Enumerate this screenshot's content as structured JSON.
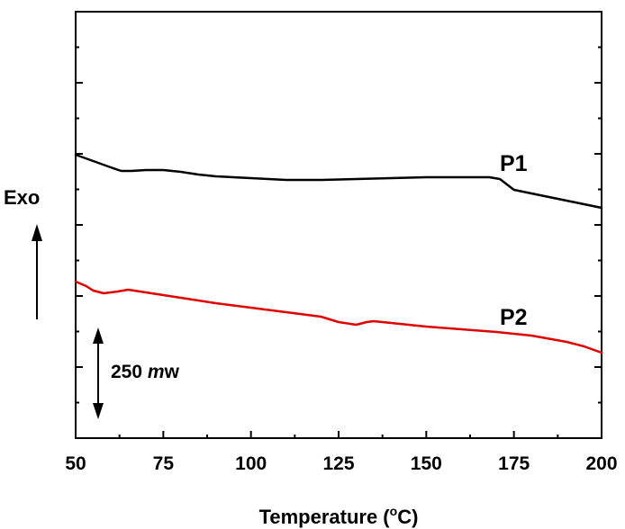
{
  "chart_data": {
    "type": "line",
    "title": "",
    "xlabel": "Temperature (",
    "xlabel_sup": "o",
    "xlabel_unit": "C)",
    "ylabel": "Exo",
    "xlim": [
      50,
      200
    ],
    "x_ticks": [
      "50",
      "75",
      "100",
      "125",
      "150",
      "175",
      "200"
    ],
    "scale_bar": {
      "value": "250 ",
      "unit_italic": "m",
      "unit_rest": "w"
    },
    "series": [
      {
        "name": "P1",
        "color": "#000000",
        "points": [
          [
            50,
            172
          ],
          [
            55,
            179
          ],
          [
            60,
            186
          ],
          [
            63,
            190
          ],
          [
            66,
            190
          ],
          [
            70,
            189
          ],
          [
            75,
            189
          ],
          [
            80,
            191
          ],
          [
            85,
            194
          ],
          [
            90,
            196
          ],
          [
            100,
            198
          ],
          [
            110,
            200
          ],
          [
            120,
            200
          ],
          [
            130,
            199
          ],
          [
            140,
            198
          ],
          [
            150,
            197
          ],
          [
            160,
            197
          ],
          [
            168,
            197
          ],
          [
            171,
            199
          ],
          [
            173,
            205
          ],
          [
            175,
            211
          ],
          [
            180,
            215
          ],
          [
            190,
            223
          ],
          [
            200,
            231
          ]
        ]
      },
      {
        "name": "P2",
        "color": "#e00000",
        "points": [
          [
            50,
            313
          ],
          [
            53,
            318
          ],
          [
            55,
            323
          ],
          [
            58,
            326
          ],
          [
            62,
            324
          ],
          [
            65,
            322
          ],
          [
            70,
            325
          ],
          [
            75,
            328
          ],
          [
            80,
            331
          ],
          [
            90,
            337
          ],
          [
            100,
            342
          ],
          [
            110,
            347
          ],
          [
            120,
            352
          ],
          [
            125,
            358
          ],
          [
            130,
            361
          ],
          [
            133,
            358
          ],
          [
            135,
            357
          ],
          [
            140,
            359
          ],
          [
            150,
            363
          ],
          [
            160,
            366
          ],
          [
            170,
            369
          ],
          [
            180,
            373
          ],
          [
            190,
            380
          ],
          [
            195,
            385
          ],
          [
            200,
            392
          ]
        ]
      }
    ]
  }
}
